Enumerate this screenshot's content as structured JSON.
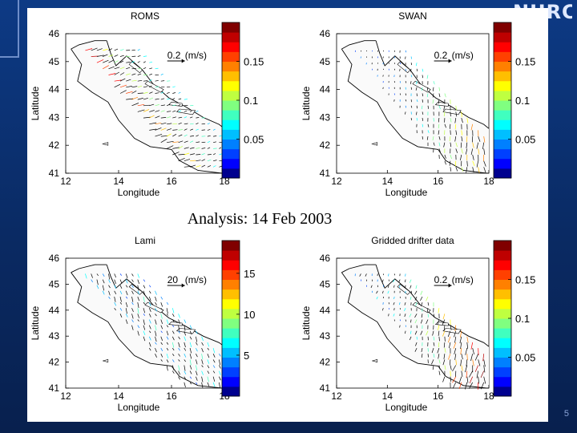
{
  "logo": {
    "text": "NURC"
  },
  "slide": {
    "title": "Analysis: 14 Feb 2003",
    "page_number": "5"
  },
  "colors": {
    "background": "#0b2d6b",
    "land": "#ffffff",
    "coast": "#000000",
    "vector": "#000000"
  },
  "colormap": [
    "#00008f",
    "#0000ff",
    "#0040ff",
    "#0080ff",
    "#00bfff",
    "#00ffff",
    "#40ffbf",
    "#80ff80",
    "#bfff40",
    "#ffff00",
    "#ffbf00",
    "#ff8000",
    "#ff4000",
    "#ff0000",
    "#bf0000",
    "#800000"
  ],
  "chart_data": [
    {
      "type": "vector-field-map",
      "title": "ROMS",
      "xlabel": "Longitude",
      "ylabel": "Latitude",
      "xlim": [
        12,
        18
      ],
      "ylim": [
        41,
        46
      ],
      "xticks": [
        "12",
        "14",
        "16",
        "18"
      ],
      "yticks": [
        "41",
        "42",
        "43",
        "44",
        "45",
        "46"
      ],
      "reference_vector": {
        "value": "0.2",
        "unit": "(m/s)"
      },
      "colorbar": {
        "min": 0.0,
        "max": 0.2,
        "ticks": [
          "0.15",
          "0.1",
          "0.05"
        ],
        "tick_values": [
          0.15,
          0.1,
          0.05
        ]
      },
      "field_pattern": "coastal-current"
    },
    {
      "type": "vector-field-map",
      "title": "SWAN",
      "xlabel": "Longitude",
      "ylabel": "Latitude",
      "xlim": [
        12,
        18
      ],
      "ylim": [
        41,
        46
      ],
      "xticks": [
        "12",
        "14",
        "16",
        "18"
      ],
      "yticks": [
        "41",
        "42",
        "43",
        "44",
        "45",
        "46"
      ],
      "reference_vector": {
        "value": "0.2",
        "unit": "(m/s)"
      },
      "colorbar": {
        "min": 0.0,
        "max": 0.2,
        "ticks": [
          "0.15",
          "0.1",
          "0.05"
        ],
        "tick_values": [
          0.15,
          0.1,
          0.05
        ]
      },
      "field_pattern": "southeast-strong"
    },
    {
      "type": "vector-field-map",
      "title": "Lami",
      "xlabel": "Longitude",
      "ylabel": "Latitude",
      "xlim": [
        12,
        18
      ],
      "ylim": [
        41,
        46
      ],
      "xticks": [
        "12",
        "14",
        "16",
        "18"
      ],
      "yticks": [
        "41",
        "42",
        "43",
        "44",
        "45",
        "46"
      ],
      "reference_vector": {
        "value": "20",
        "unit": "(m/s)"
      },
      "colorbar": {
        "min": 0,
        "max": 19,
        "ticks": [
          "15",
          "10",
          "5"
        ],
        "tick_values": [
          15,
          10,
          5
        ]
      },
      "field_pattern": "wind-blue"
    },
    {
      "type": "vector-field-map",
      "title": "Gridded drifter data",
      "xlabel": "Longitude",
      "ylabel": "Latitude",
      "xlim": [
        12,
        18
      ],
      "ylim": [
        41,
        46
      ],
      "xticks": [
        "12",
        "14",
        "16",
        "18"
      ],
      "yticks": [
        "41",
        "42",
        "43",
        "44",
        "45",
        "46"
      ],
      "reference_vector": {
        "value": "0.2",
        "unit": "(m/s)"
      },
      "colorbar": {
        "min": 0.0,
        "max": 0.2,
        "ticks": [
          "0.15",
          "0.1",
          "0.05"
        ],
        "tick_values": [
          0.15,
          0.1,
          0.05
        ]
      },
      "field_pattern": "drifter-south"
    }
  ]
}
